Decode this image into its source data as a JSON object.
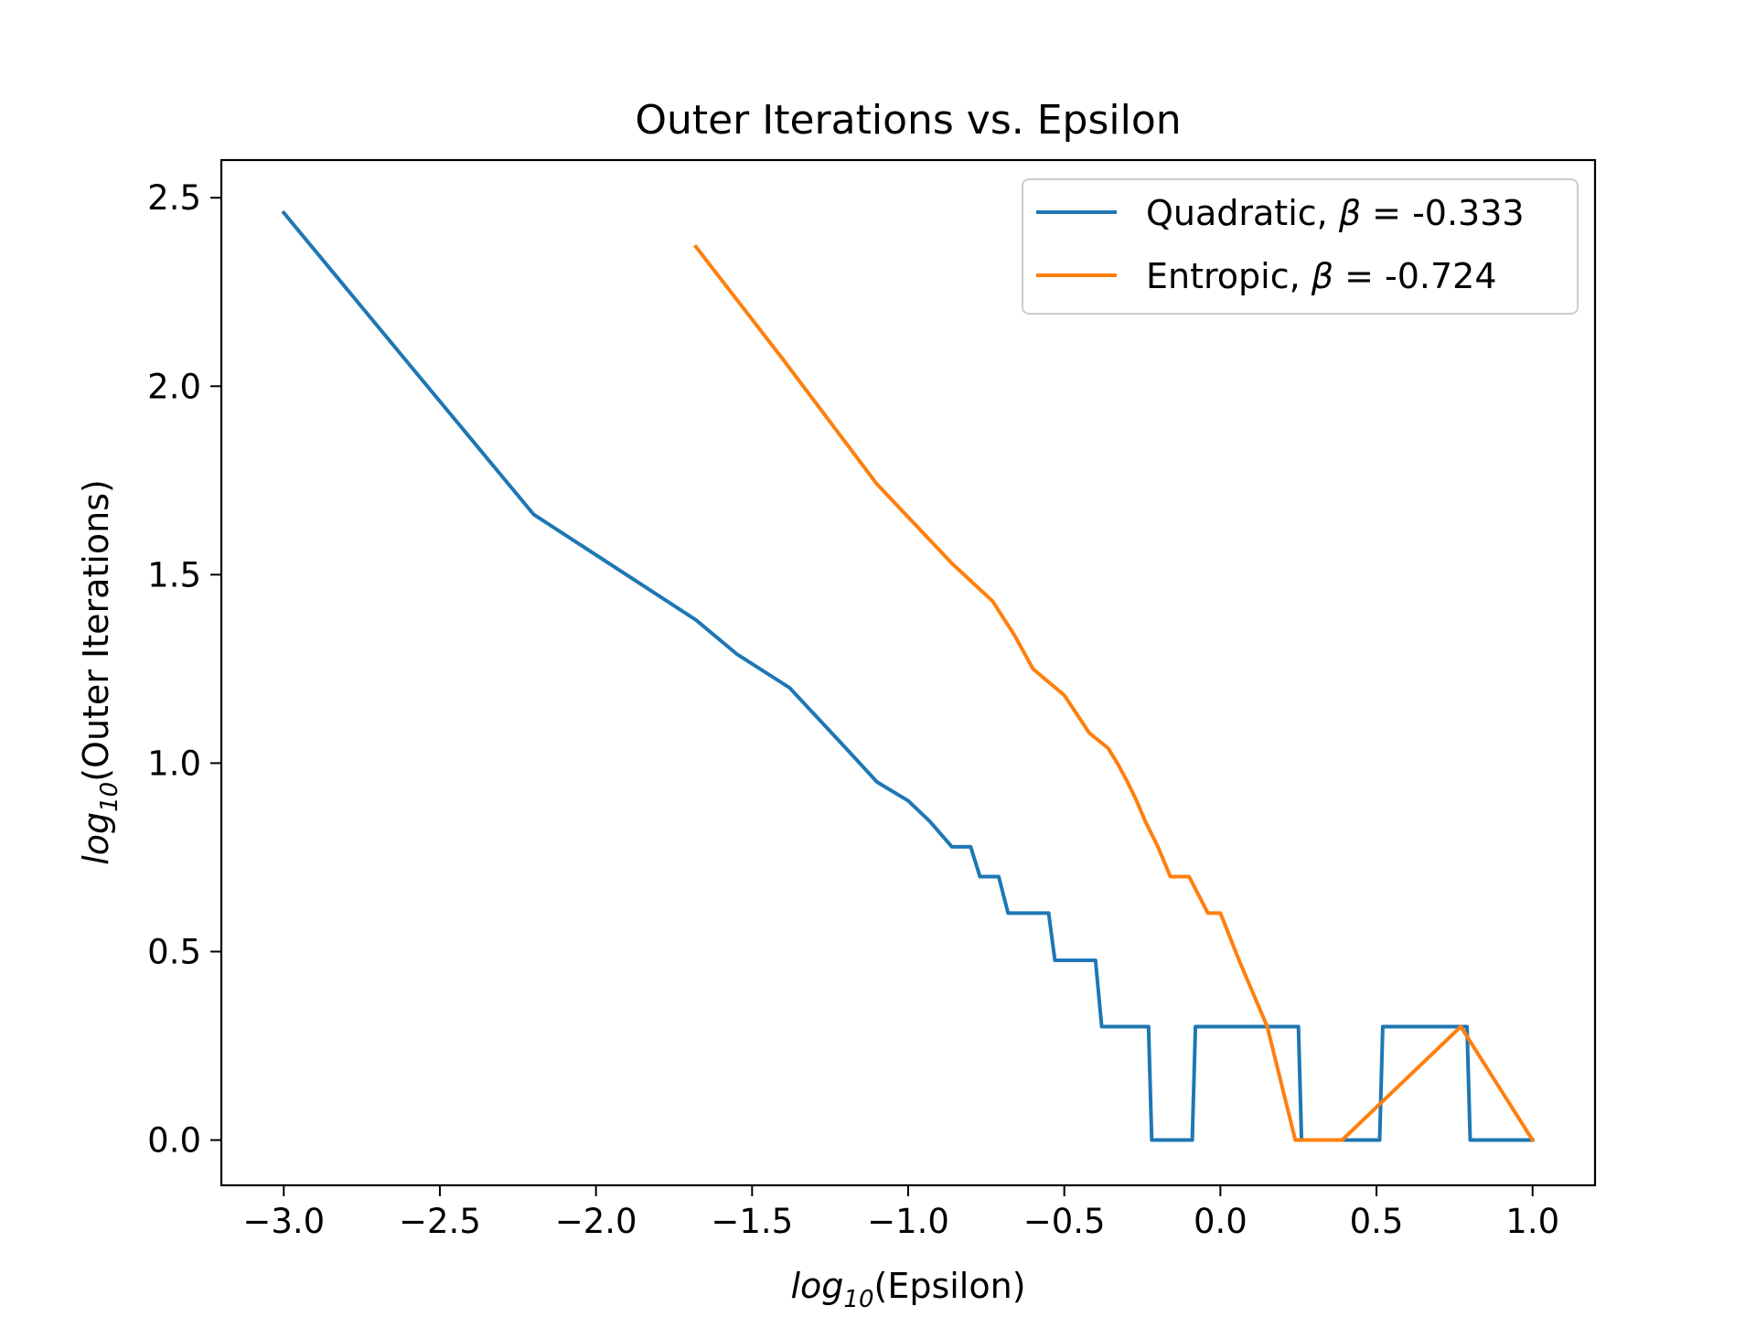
{
  "chart_data": {
    "type": "line",
    "title": "Outer Iterations vs. Epsilon",
    "xlabel": {
      "prefix": "log",
      "subscript": "10",
      "suffix": "(Epsilon)"
    },
    "ylabel": {
      "prefix": "log",
      "subscript": "10",
      "suffix": "(Outer Iterations)"
    },
    "xlim": [
      -3.2,
      1.2
    ],
    "ylim": [
      -0.12,
      2.6
    ],
    "xticks": [
      -3.0,
      -2.5,
      -2.0,
      -1.5,
      -1.0,
      -0.5,
      0.0,
      0.5,
      1.0
    ],
    "xtick_labels": [
      "−3.0",
      "−2.5",
      "−2.0",
      "−1.5",
      "−1.0",
      "−0.5",
      "0.0",
      "0.5",
      "1.0"
    ],
    "yticks": [
      0.0,
      0.5,
      1.0,
      1.5,
      2.0,
      2.5
    ],
    "ytick_labels": [
      "0.0",
      "0.5",
      "1.0",
      "1.5",
      "2.0",
      "2.5"
    ],
    "grid": false,
    "legend_position": "top-right",
    "series": [
      {
        "name": "Quadratic, β = -0.333",
        "name_prefix": "Quadratic, ",
        "name_symbol": "β",
        "name_suffix": " = -0.333",
        "color": "#1f77b4",
        "x": [
          -3.0,
          -2.6,
          -2.2,
          -1.68,
          -1.55,
          -1.38,
          -1.2,
          -1.1,
          -1.0,
          -0.93,
          -0.86,
          -0.8,
          -0.77,
          -0.71,
          -0.68,
          -0.65,
          -0.55,
          -0.53,
          -0.4,
          -0.38,
          -0.23,
          -0.22,
          -0.09,
          -0.08,
          0.25,
          0.26,
          0.51,
          0.52,
          0.79,
          0.8,
          1.0
        ],
        "y": [
          2.46,
          2.06,
          1.66,
          1.38,
          1.29,
          1.2,
          1.04,
          0.95,
          0.9,
          0.845,
          0.778,
          0.778,
          0.699,
          0.699,
          0.602,
          0.602,
          0.602,
          0.477,
          0.477,
          0.301,
          0.301,
          0.0,
          0.0,
          0.301,
          0.301,
          0.0,
          0.0,
          0.301,
          0.301,
          0.0,
          0.0
        ]
      },
      {
        "name": "Entropic, β = -0.724",
        "name_prefix": "Entropic, ",
        "name_symbol": "β",
        "name_suffix": " = -0.724",
        "color": "#ff7f0e",
        "x": [
          -1.68,
          -1.4,
          -1.1,
          -0.86,
          -0.73,
          -0.66,
          -0.6,
          -0.5,
          -0.42,
          -0.36,
          -0.33,
          -0.3,
          -0.27,
          -0.24,
          -0.2,
          -0.16,
          -0.1,
          -0.04,
          0.0,
          0.06,
          0.15,
          0.24,
          0.39,
          0.77,
          1.0
        ],
        "y": [
          2.37,
          2.07,
          1.74,
          1.53,
          1.43,
          1.34,
          1.25,
          1.18,
          1.08,
          1.04,
          1.0,
          0.954,
          0.903,
          0.845,
          0.778,
          0.699,
          0.699,
          0.602,
          0.602,
          0.477,
          0.301,
          0.0,
          0.0,
          0.301,
          0.0
        ]
      }
    ]
  }
}
